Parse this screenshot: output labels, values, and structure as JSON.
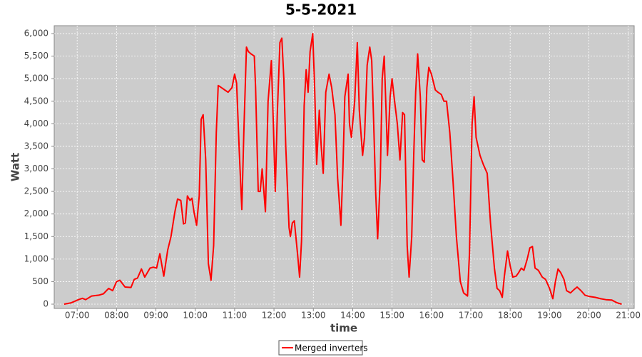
{
  "chart_data": {
    "type": "line",
    "title": "5-5-2021",
    "x_label": "time",
    "y_label": "Watt",
    "x": [
      "06:40",
      "06:51",
      "07:02",
      "07:08",
      "07:13",
      "07:22",
      "07:33",
      "07:40",
      "07:48",
      "07:54",
      "08:00",
      "08:05",
      "08:13",
      "08:22",
      "08:27",
      "08:32",
      "08:38",
      "08:43",
      "08:51",
      "08:56",
      "09:01",
      "09:06",
      "09:12",
      "09:18",
      "09:23",
      "09:29",
      "09:33",
      "09:38",
      "09:42",
      "09:45",
      "09:48",
      "09:52",
      "09:55",
      "09:58",
      "10:02",
      "10:06",
      "10:09",
      "10:12",
      "10:16",
      "10:20",
      "10:24",
      "10:28",
      "10:32",
      "10:35",
      "10:40",
      "10:45",
      "10:50",
      "10:56",
      "11:00",
      "11:03",
      "11:07",
      "11:11",
      "11:14",
      "11:18",
      "11:21",
      "11:25",
      "11:30",
      "11:32",
      "11:36",
      "11:39",
      "11:42",
      "11:47",
      "11:51",
      "11:56",
      "11:59",
      "12:02",
      "12:05",
      "12:09",
      "12:12",
      "12:15",
      "12:18",
      "12:23",
      "12:25",
      "12:28",
      "12:31",
      "12:36",
      "12:39",
      "12:42",
      "12:46",
      "12:49",
      "12:52",
      "12:55",
      "12:59",
      "13:02",
      "13:05",
      "13:09",
      "13:12",
      "13:15",
      "13:19",
      "13:24",
      "13:28",
      "13:33",
      "13:37",
      "13:42",
      "13:45",
      "13:48",
      "13:53",
      "13:55",
      "13:58",
      "14:03",
      "14:07",
      "14:10",
      "14:15",
      "14:18",
      "14:22",
      "14:26",
      "14:29",
      "14:32",
      "14:35",
      "14:38",
      "14:42",
      "14:45",
      "14:48",
      "14:51",
      "14:53",
      "14:57",
      "15:00",
      "15:03",
      "15:08",
      "15:12",
      "15:16",
      "15:19",
      "15:23",
      "15:26",
      "15:30",
      "15:33",
      "15:36",
      "15:39",
      "15:43",
      "15:46",
      "15:49",
      "15:53",
      "15:56",
      "16:00",
      "16:06",
      "16:10",
      "16:15",
      "16:19",
      "16:23",
      "16:28",
      "16:33",
      "16:38",
      "16:44",
      "16:49",
      "16:55",
      "16:58",
      "17:02",
      "17:05",
      "17:08",
      "17:14",
      "17:19",
      "17:25",
      "17:30",
      "17:36",
      "17:40",
      "17:44",
      "17:48",
      "17:51",
      "17:56",
      "18:00",
      "18:04",
      "18:09",
      "18:13",
      "18:17",
      "18:21",
      "18:26",
      "18:30",
      "18:34",
      "18:38",
      "18:43",
      "18:49",
      "18:54",
      "19:00",
      "19:05",
      "19:09",
      "19:13",
      "19:17",
      "19:22",
      "19:26",
      "19:32",
      "19:37",
      "19:42",
      "19:48",
      "19:54",
      "20:01",
      "20:10",
      "20:18",
      "20:26",
      "20:35",
      "20:43",
      "20:50"
    ],
    "series": [
      {
        "name": "Merged inverters",
        "color": "#ff0000",
        "values": [
          0,
          30,
          100,
          130,
          100,
          180,
          200,
          230,
          350,
          300,
          500,
          530,
          380,
          370,
          550,
          580,
          780,
          600,
          800,
          820,
          800,
          1120,
          620,
          1200,
          1500,
          2050,
          2330,
          2300,
          1780,
          1800,
          2400,
          2300,
          2350,
          2050,
          1750,
          2400,
          4100,
          4200,
          3200,
          900,
          530,
          1300,
          3800,
          4850,
          4800,
          4750,
          4700,
          4800,
          5100,
          4900,
          3400,
          2100,
          3800,
          5700,
          5600,
          5550,
          5500,
          4800,
          2500,
          2500,
          3000,
          2050,
          4500,
          5400,
          4000,
          2500,
          4200,
          5800,
          5900,
          5000,
          3500,
          1700,
          1500,
          1800,
          1850,
          1100,
          600,
          1400,
          4400,
          5200,
          4700,
          5600,
          6000,
          4800,
          3100,
          4300,
          3500,
          2900,
          4700,
          5100,
          4800,
          4200,
          2800,
          1750,
          3000,
          4600,
          5100,
          4000,
          3700,
          4500,
          5800,
          4300,
          3300,
          3700,
          5300,
          5700,
          5400,
          4000,
          2500,
          1450,
          2800,
          5000,
          5500,
          4200,
          3300,
          4600,
          5000,
          4600,
          4000,
          3200,
          4250,
          4200,
          1300,
          600,
          1500,
          3300,
          4700,
          5550,
          4600,
          3200,
          3150,
          4800,
          5250,
          5100,
          4750,
          4700,
          4650,
          4500,
          4500,
          3800,
          2700,
          1500,
          500,
          250,
          180,
          1150,
          4000,
          4600,
          3700,
          3300,
          3100,
          2900,
          1800,
          800,
          350,
          300,
          150,
          600,
          1180,
          850,
          600,
          620,
          700,
          800,
          750,
          1000,
          1250,
          1280,
          800,
          750,
          600,
          550,
          350,
          120,
          500,
          780,
          700,
          550,
          300,
          250,
          320,
          380,
          300,
          200,
          170,
          150,
          120,
          100,
          90,
          30,
          0
        ]
      }
    ],
    "xlim": [
      "06:25",
      "21:09"
    ],
    "xticks": [
      "07:00",
      "08:00",
      "09:00",
      "10:00",
      "11:00",
      "12:00",
      "13:00",
      "14:00",
      "15:00",
      "16:00",
      "17:00",
      "18:00",
      "19:00",
      "20:00",
      "21:00"
    ],
    "ylim": [
      -95,
      6175
    ],
    "yticks": [
      0,
      500,
      {
        "value": 1000,
        "label": "1,000"
      },
      {
        "value": 1500,
        "label": "1,500"
      },
      {
        "value": 2000,
        "label": "2,000"
      },
      {
        "value": 2500,
        "label": "2,500"
      },
      {
        "value": 3000,
        "label": "3,000"
      },
      {
        "value": 3500,
        "label": "3,500"
      },
      {
        "value": 4000,
        "label": "4,000"
      },
      {
        "value": 4500,
        "label": "4,500"
      },
      {
        "value": 5000,
        "label": "5,000"
      },
      {
        "value": 5500,
        "label": "5,500"
      },
      {
        "value": 6000,
        "label": "6,000"
      }
    ],
    "grid": true
  }
}
